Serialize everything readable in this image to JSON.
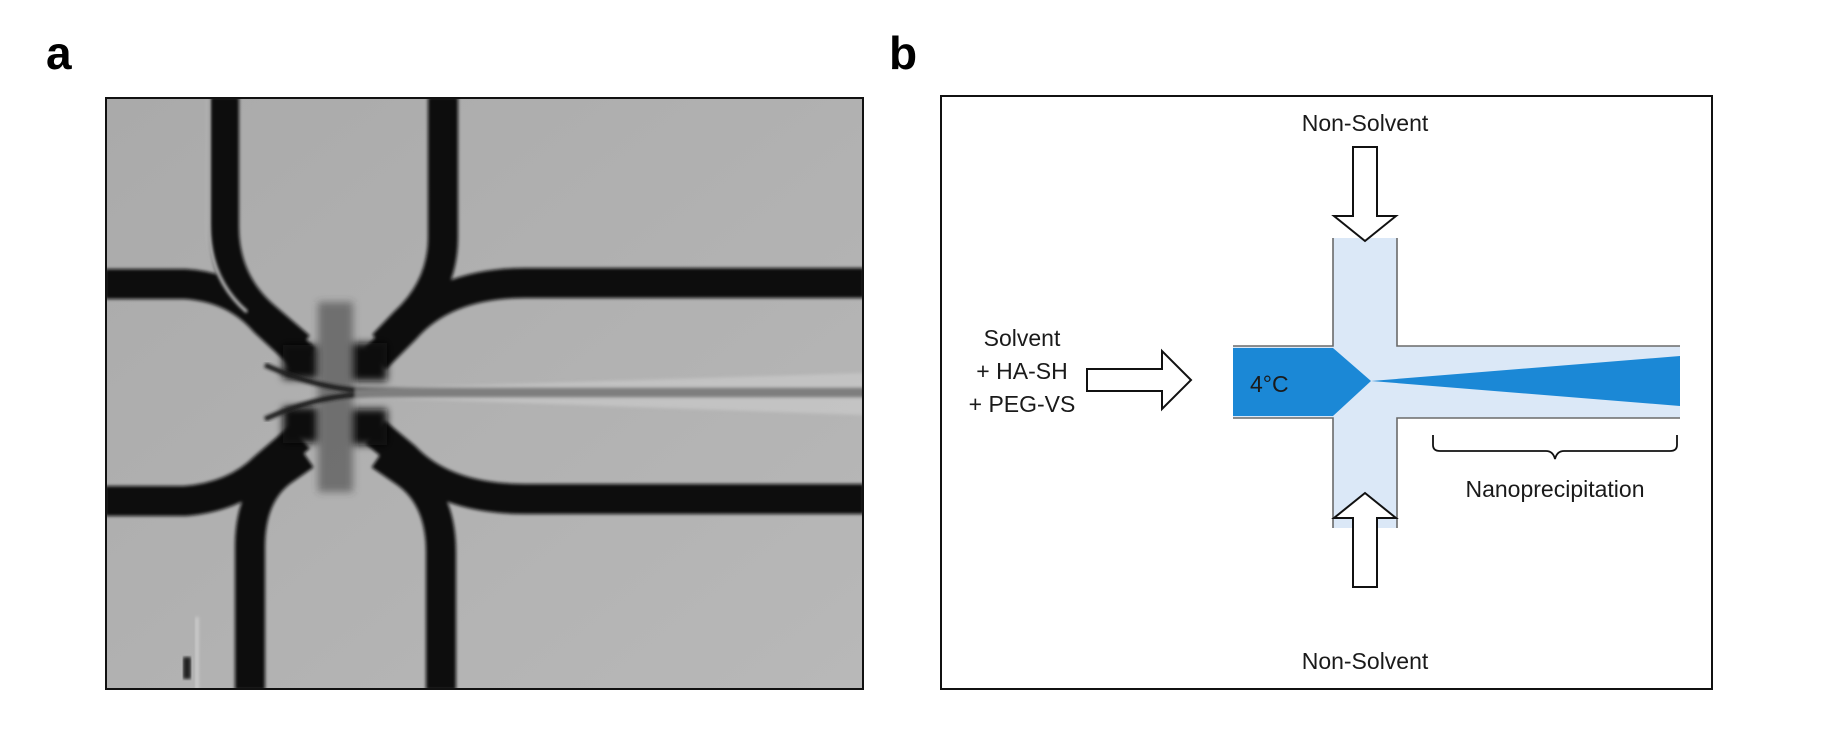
{
  "panels": {
    "a": {
      "letter": "a"
    },
    "b": {
      "letter": "b"
    }
  },
  "schematic": {
    "top_inlet_label": "Non-Solvent",
    "bottom_inlet_label": "Non-Solvent",
    "left_inlet_lines": [
      "Solvent",
      "+ HA-SH",
      "+ PEG-VS"
    ],
    "temperature_label": "4°C",
    "outlet_region_label": "Nanoprecipitation",
    "colors": {
      "core_stream": "#1b88d6",
      "sheath_fluid": "#dbe8f7",
      "channel_wall": "#6a6a6a"
    }
  }
}
